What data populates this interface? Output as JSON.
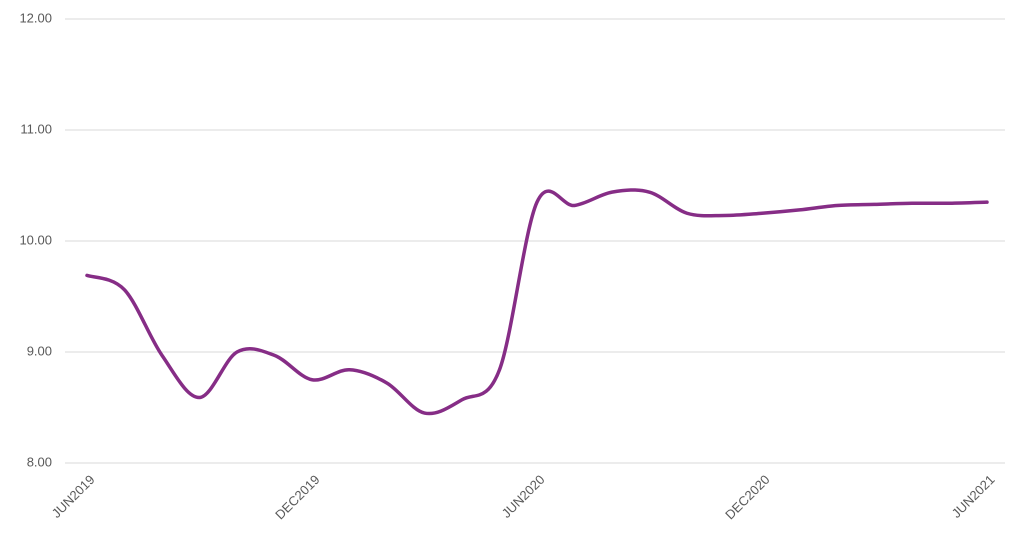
{
  "chart_data": {
    "type": "line",
    "categories": [
      "JUN2019",
      null,
      null,
      null,
      null,
      null,
      "DEC2019",
      null,
      null,
      null,
      null,
      null,
      "JUN2020",
      null,
      null,
      null,
      null,
      null,
      "DEC2020",
      null,
      null,
      null,
      null,
      null,
      "JUN2021"
    ],
    "series": [
      {
        "color": "#862d86",
        "values": [
          9.69,
          9.56,
          8.97,
          8.59,
          9.0,
          8.97,
          8.75,
          8.84,
          8.72,
          8.45,
          8.57,
          8.84,
          10.35,
          10.32,
          10.44,
          10.44,
          10.25,
          10.23,
          10.25,
          10.28,
          10.32,
          10.33,
          10.34,
          10.34,
          10.35
        ]
      }
    ],
    "ylim": [
      8,
      12
    ],
    "yticks": [
      {
        "value": 8,
        "label": "8.00"
      },
      {
        "value": 9,
        "label": "9.00"
      },
      {
        "value": 10,
        "label": "10.00"
      },
      {
        "value": 11,
        "label": "11.00"
      },
      {
        "value": 12,
        "label": "12.00"
      }
    ],
    "grid": true,
    "smooth": true
  }
}
